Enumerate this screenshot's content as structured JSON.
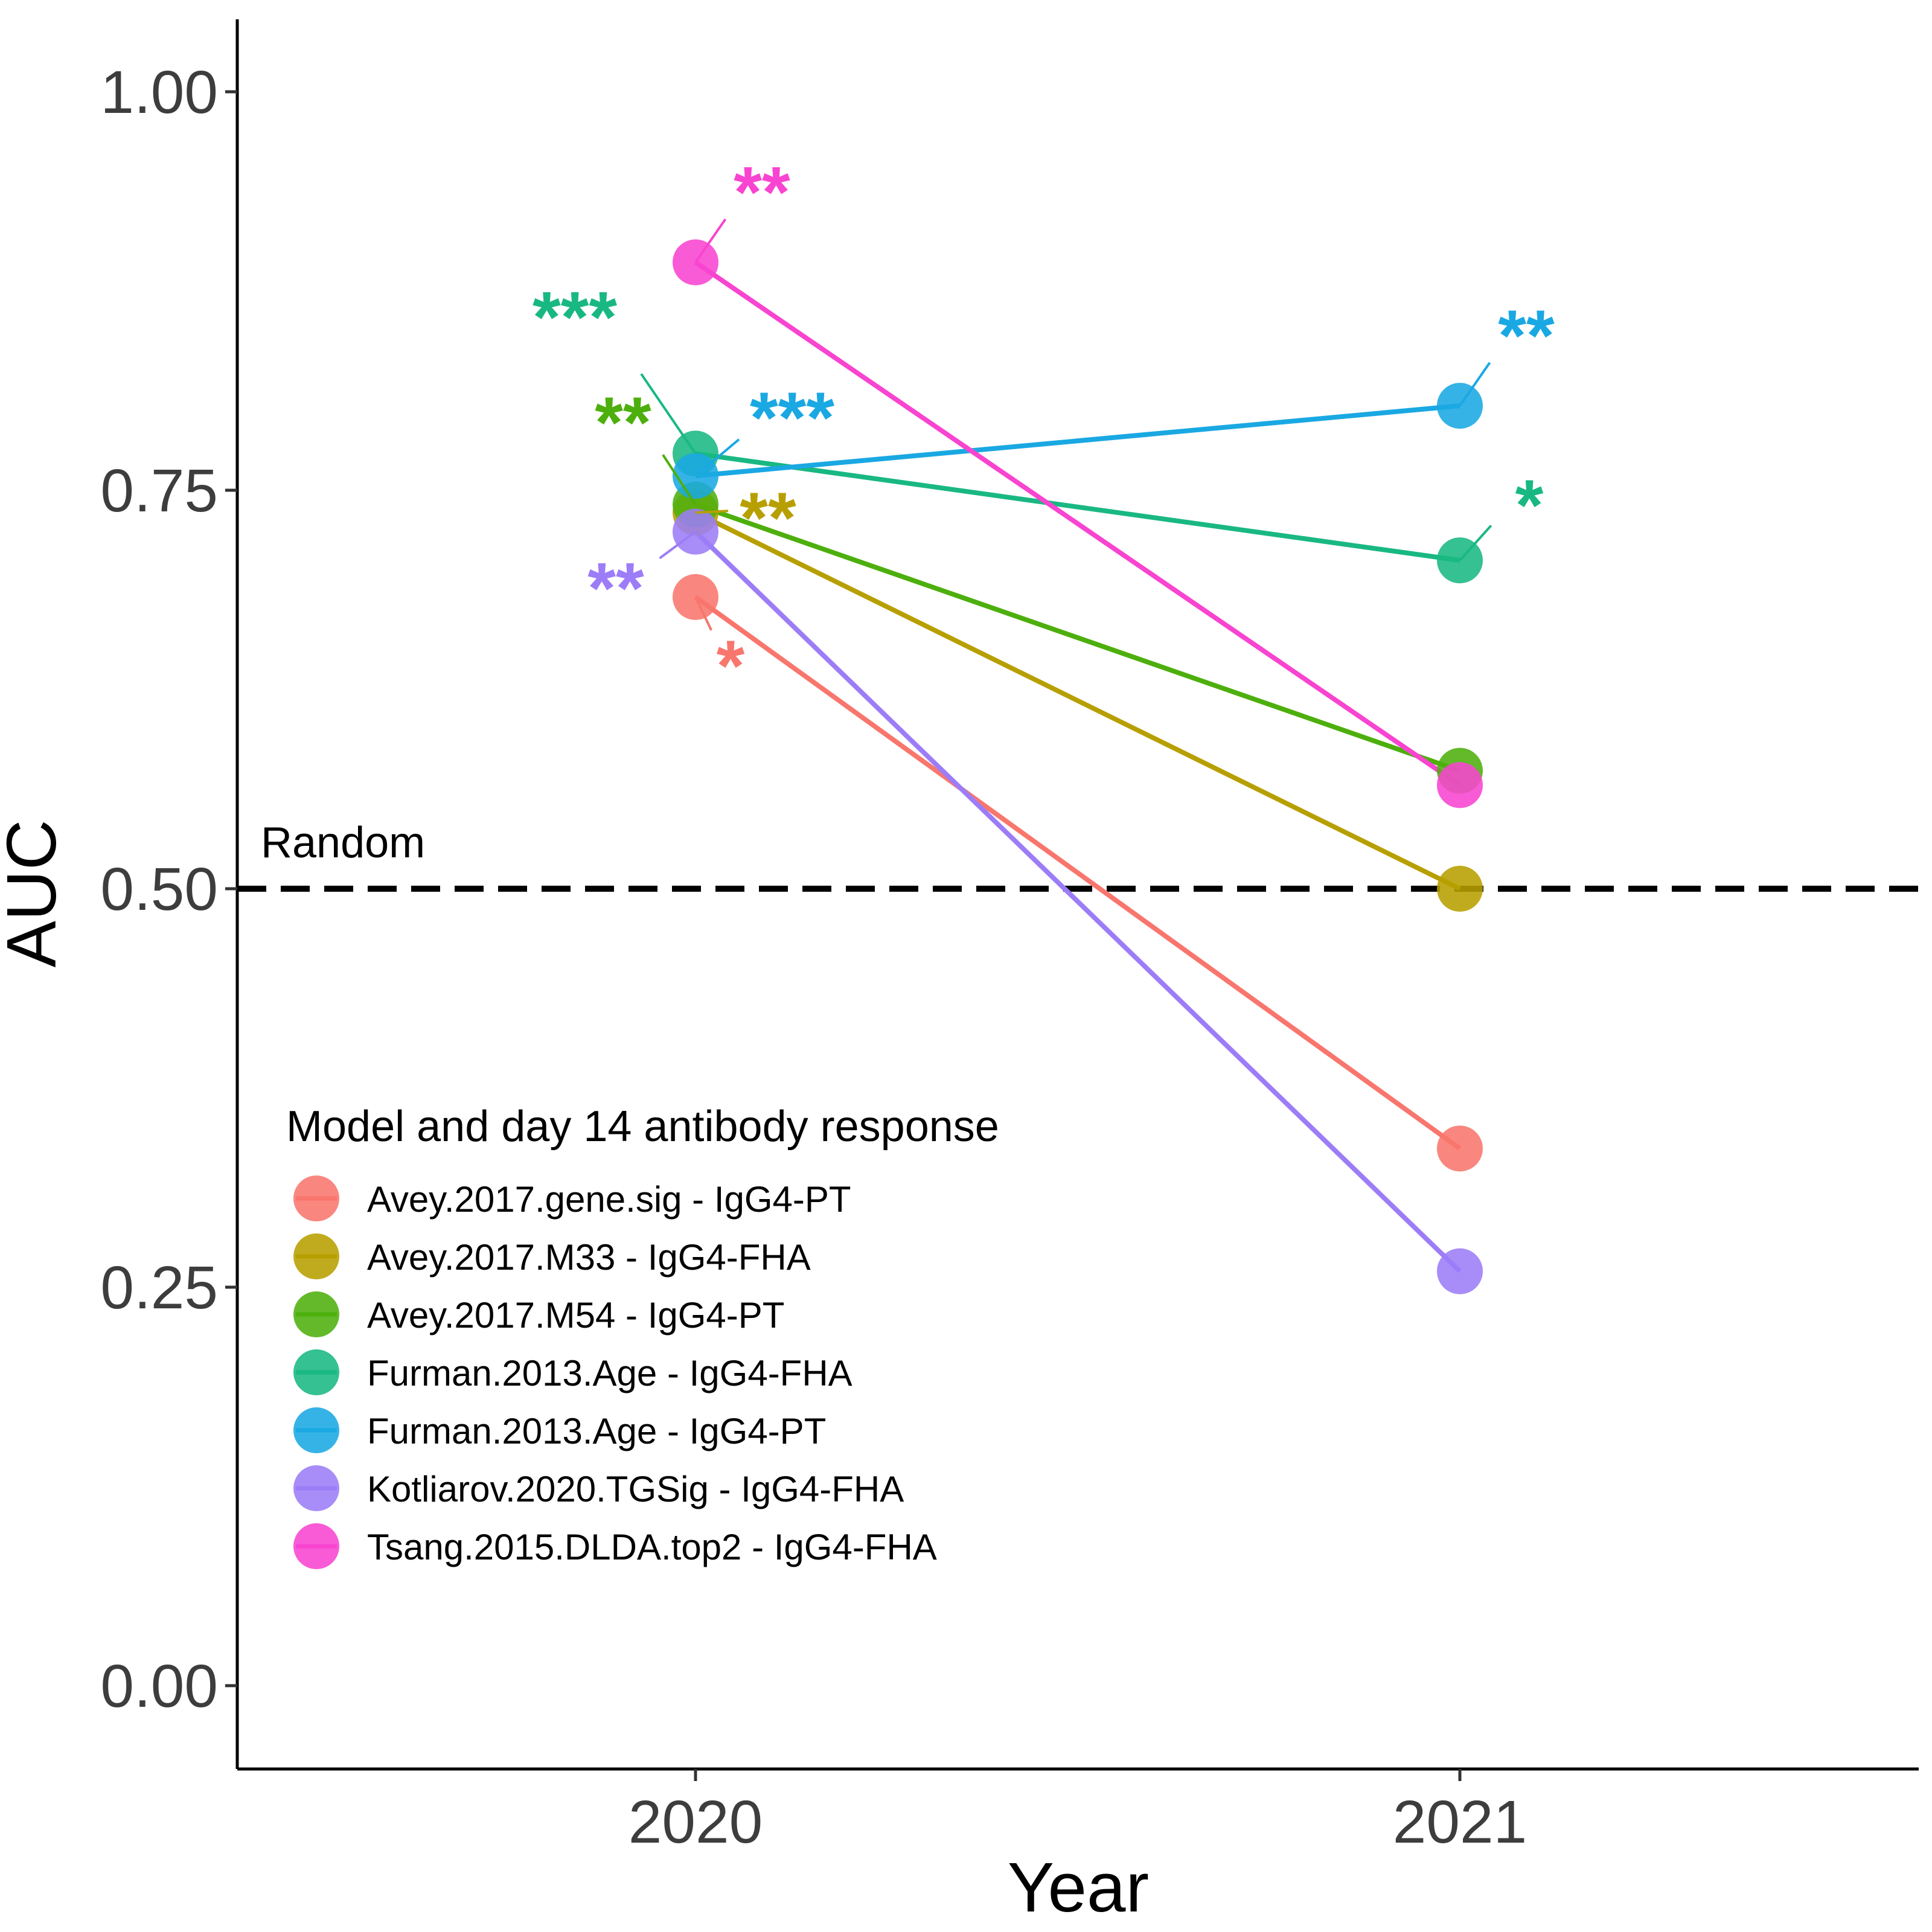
{
  "chart_data": {
    "type": "line",
    "xlabel": "Year",
    "ylabel": "AUC",
    "x": [
      "2020",
      "2021"
    ],
    "ylim": [
      -0.05,
      1.05
    ],
    "yticks": [
      0.0,
      0.25,
      0.5,
      0.75,
      1.0
    ],
    "ytick_labels": [
      "0.00",
      "0.25",
      "0.50",
      "0.75",
      "1.00"
    ],
    "grid": false,
    "reference_line": {
      "y": 0.5,
      "style": "dashed",
      "label": "Random"
    },
    "legend": {
      "title": "Model and day 14 antibody response",
      "position": "bottom-left"
    },
    "series": [
      {
        "name": "Avey.2017.gene.sig - IgG4-PT",
        "color": "#F8766D",
        "values": [
          0.683,
          0.337
        ],
        "significance": [
          "*",
          ""
        ]
      },
      {
        "name": "Avey.2017.M33 - IgG4-FHA",
        "color": "#B79F00",
        "values": [
          0.736,
          0.5
        ],
        "significance": [
          "**",
          ""
        ]
      },
      {
        "name": "Avey.2017.M54 - IgG4-PT",
        "color": "#4DAF0D",
        "values": [
          0.741,
          0.574
        ],
        "significance": [
          "**",
          ""
        ]
      },
      {
        "name": "Furman.2013.Age - IgG4-FHA",
        "color": "#19B882",
        "values": [
          0.773,
          0.706
        ],
        "significance": [
          "***",
          "*"
        ]
      },
      {
        "name": "Furman.2013.Age - IgG4-PT",
        "color": "#1AA8E3",
        "values": [
          0.759,
          0.803
        ],
        "significance": [
          "***",
          "**"
        ]
      },
      {
        "name": "Kotliarov.2020.TGSig - IgG4-FHA",
        "color": "#9C7DF7",
        "values": [
          0.724,
          0.26
        ],
        "significance": [
          "**",
          ""
        ]
      },
      {
        "name": "Tsang.2015.DLDA.top2 - IgG4-FHA",
        "color": "#F844D0",
        "values": [
          0.893,
          0.565
        ],
        "significance": [
          "**",
          ""
        ]
      }
    ]
  }
}
